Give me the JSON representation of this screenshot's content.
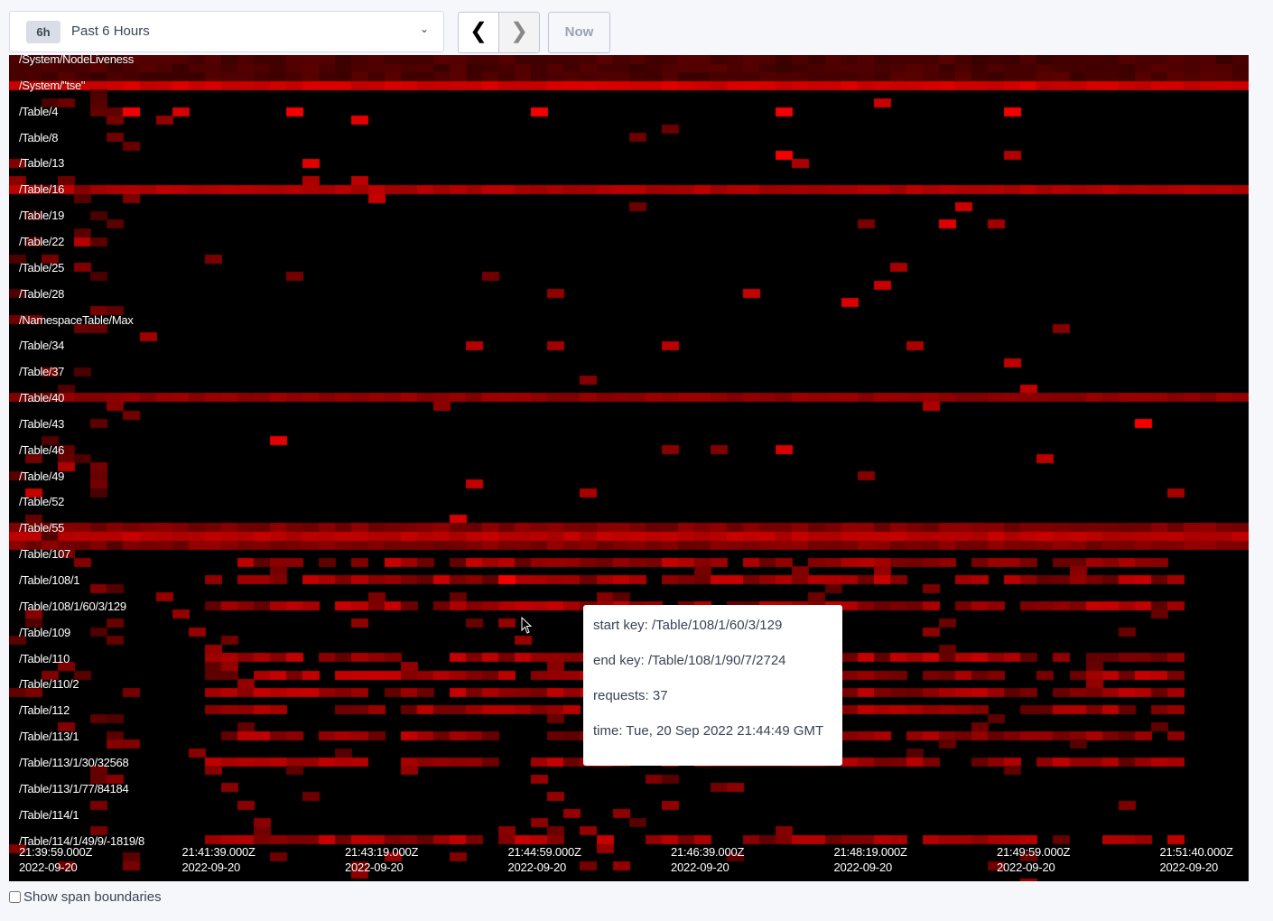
{
  "time_range": {
    "badge": "6h",
    "label": "Past 6 Hours",
    "dropdown_icon": "chevron-down-icon"
  },
  "nav": {
    "prev_icon": "chevron-left-icon",
    "next_icon": "chevron-right-icon",
    "now_label": "Now"
  },
  "heatmap": {
    "accent_color": "#ff0000",
    "row_labels": [
      "/System/NodeLiveness",
      "/System/\"tse\"",
      "/Table/4",
      "/Table/8",
      "/Table/13",
      "/Table/16",
      "/Table/19",
      "/Table/22",
      "/Table/25",
      "/Table/28",
      "/NamespaceTable/Max",
      "/Table/34",
      "/Table/37",
      "/Table/40",
      "/Table/43",
      "/Table/46",
      "/Table/49",
      "/Table/52",
      "/Table/55",
      "/Table/107",
      "/Table/108/1",
      "/Table/108/1/60/3/129",
      "/Table/109",
      "/Table/110",
      "/Table/110/2",
      "/Table/112",
      "/Table/113/1",
      "/Table/113/1/30/32568",
      "/Table/113/1/77/84184",
      "/Table/114/1",
      "/Table/114/1/49/9/-1819/8"
    ],
    "time_ticks": [
      {
        "time": "21:39:59.000Z",
        "date": "2022-09-20"
      },
      {
        "time": "21:41:39.000Z",
        "date": "2022-09-20"
      },
      {
        "time": "21:43:19.000Z",
        "date": "2022-09-20"
      },
      {
        "time": "21:44:59.000Z",
        "date": "2022-09-20"
      },
      {
        "time": "21:46:39.000Z",
        "date": "2022-09-20"
      },
      {
        "time": "21:48:19.000Z",
        "date": "2022-09-20"
      },
      {
        "time": "21:49:59.000Z",
        "date": "2022-09-20"
      },
      {
        "time": "21:51:40.000Z",
        "date": "2022-09-20"
      }
    ]
  },
  "tooltip": {
    "start_key": "start key: /Table/108/1/60/3/129",
    "end_key": "end key: /Table/108/1/90/7/2724",
    "requests": "requests: 37",
    "time": "time: Tue, 20 Sep 2022 21:44:49 GMT"
  },
  "span_boundaries": {
    "label": "Show span boundaries",
    "checked": false
  }
}
